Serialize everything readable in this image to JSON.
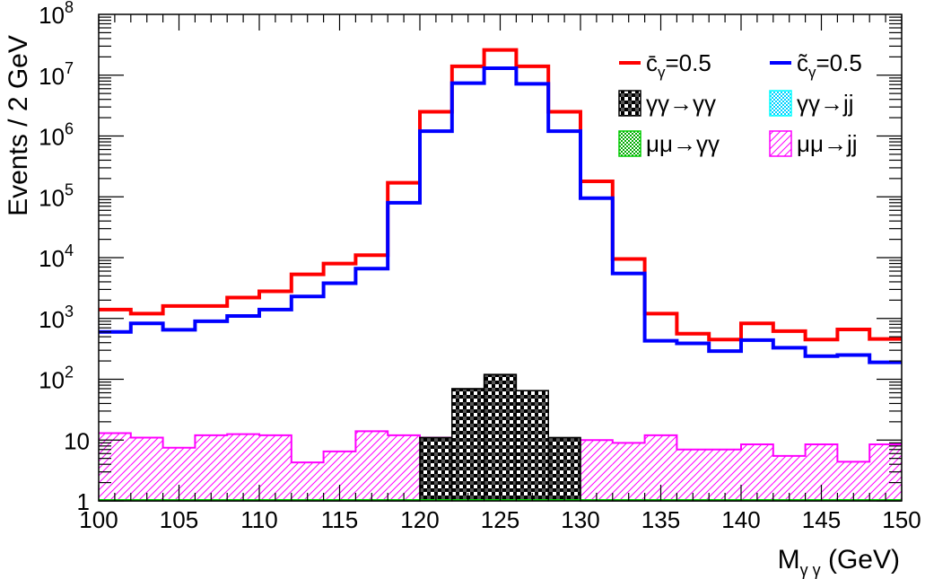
{
  "chart_data": {
    "type": "step-histogram",
    "xlabel": "M",
    "xlabel_sub": "γ γ",
    "xlabel_unit": " (GeV)",
    "ylabel": "Events / 2 GeV",
    "xlim": [
      100,
      150
    ],
    "ylim": [
      1,
      100000000
    ],
    "y_scale": "log",
    "x_ticks": [
      100,
      105,
      110,
      115,
      120,
      125,
      130,
      135,
      140,
      145,
      150
    ],
    "x_tick_labels": [
      "100",
      "105",
      "110",
      "115",
      "120",
      "125",
      "130",
      "135",
      "140",
      "145",
      "150"
    ],
    "y_major_ticks": [
      {
        "value": 1,
        "label": "1",
        "sup": ""
      },
      {
        "value": 10,
        "label": "10",
        "sup": ""
      },
      {
        "value": 100,
        "label": "10",
        "sup": "2"
      },
      {
        "value": 1000,
        "label": "10",
        "sup": "3"
      },
      {
        "value": 10000,
        "label": "10",
        "sup": "4"
      },
      {
        "value": 100000,
        "label": "10",
        "sup": "5"
      },
      {
        "value": 1000000,
        "label": "10",
        "sup": "6"
      },
      {
        "value": 10000000,
        "label": "10",
        "sup": "7"
      },
      {
        "value": 100000000,
        "label": "10",
        "sup": "8"
      }
    ],
    "bin_edges": [
      100,
      102,
      104,
      106,
      108,
      110,
      112,
      114,
      116,
      118,
      120,
      122,
      124,
      126,
      128,
      130,
      132,
      134,
      136,
      138,
      140,
      142,
      144,
      146,
      148,
      150
    ],
    "legend_position": "top-right",
    "legend_columns": 2,
    "series": [
      {
        "name": "c̄γ=0.5",
        "name_main": "c̄",
        "name_sub": "γ",
        "name_rest": "=0.5",
        "style": "line",
        "color": "#ff0000",
        "values": [
          1400,
          1200,
          1600,
          1600,
          2200,
          2800,
          5300,
          8000,
          11000,
          170000,
          2500000,
          14000000,
          26000000,
          14000000,
          2500000,
          180000,
          9500,
          1200,
          560,
          450,
          830,
          620,
          450,
          660,
          460
        ]
      },
      {
        "name": "c̃γ=0.5",
        "name_main": "c̃",
        "name_sub": "γ",
        "name_rest": "=0.5",
        "style": "line",
        "color": "#0000ff",
        "values": [
          600,
          830,
          650,
          900,
          1100,
          1400,
          2300,
          3800,
          6600,
          80000,
          1200000,
          7400000,
          13000000,
          7200000,
          1200000,
          95000,
          5500,
          430,
          390,
          290,
          440,
          330,
          240,
          250,
          190
        ]
      },
      {
        "name": "γγ→γγ",
        "style": "hatched",
        "color": "#000000",
        "values": [
          1,
          1,
          1,
          1,
          1,
          1,
          1,
          1,
          1,
          1,
          11,
          70,
          120,
          65,
          11,
          1,
          1,
          1,
          1,
          1,
          1,
          1,
          1,
          1,
          1
        ]
      },
      {
        "name": "γγ→jj",
        "style": "hatched",
        "color": "#00ffff",
        "values": [
          1,
          1,
          1,
          1,
          1,
          1,
          1,
          1,
          1,
          1,
          1,
          1,
          1,
          1,
          1,
          1,
          1,
          1,
          1,
          1,
          1,
          1,
          1,
          1,
          1
        ]
      },
      {
        "name": "μμ→γγ",
        "style": "hatched",
        "color": "#00cc00",
        "values": [
          1,
          1,
          1,
          1,
          1,
          1,
          1,
          1,
          1,
          1,
          1,
          1,
          1,
          1,
          1,
          1,
          1,
          1,
          1,
          1,
          1,
          1,
          1,
          1,
          1
        ]
      },
      {
        "name": "μμ→jj",
        "style": "hatched",
        "color": "#ff00ff",
        "values": [
          13,
          11,
          7.5,
          12,
          12.5,
          12,
          4.3,
          6.5,
          14,
          12,
          11,
          9,
          11,
          8.5,
          10,
          10,
          9,
          12,
          7,
          7,
          8.5,
          5.5,
          8.5,
          4.4,
          8.5
        ]
      }
    ]
  }
}
